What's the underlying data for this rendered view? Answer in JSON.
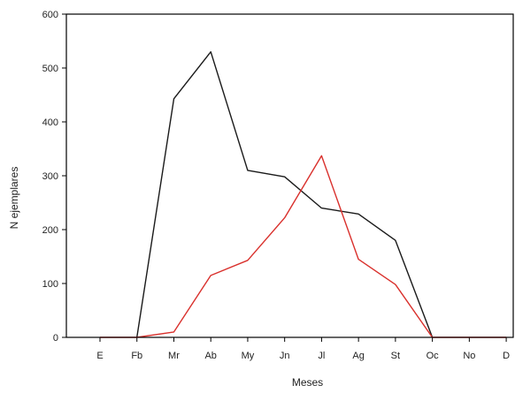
{
  "chart_data": {
    "type": "line",
    "title": "",
    "xlabel": "Meses",
    "ylabel": "N ejemplares",
    "categories": [
      "E",
      "Fb",
      "Mr",
      "Ab",
      "My",
      "Jn",
      "Jl",
      "Ag",
      "St",
      "Oc",
      "No",
      "D"
    ],
    "ylim": [
      0,
      600
    ],
    "yticks": [
      0,
      100,
      200,
      300,
      400,
      500,
      600
    ],
    "grid": false,
    "legend": "none",
    "series": [
      {
        "color": "#1a1a1a",
        "values": [
          null,
          0,
          443,
          530,
          310,
          298,
          240,
          229,
          180,
          0,
          null,
          null
        ]
      },
      {
        "color": "#d9302c",
        "values": [
          0,
          0,
          10,
          115,
          143,
          222,
          337,
          145,
          98,
          0,
          0,
          0
        ]
      }
    ]
  }
}
